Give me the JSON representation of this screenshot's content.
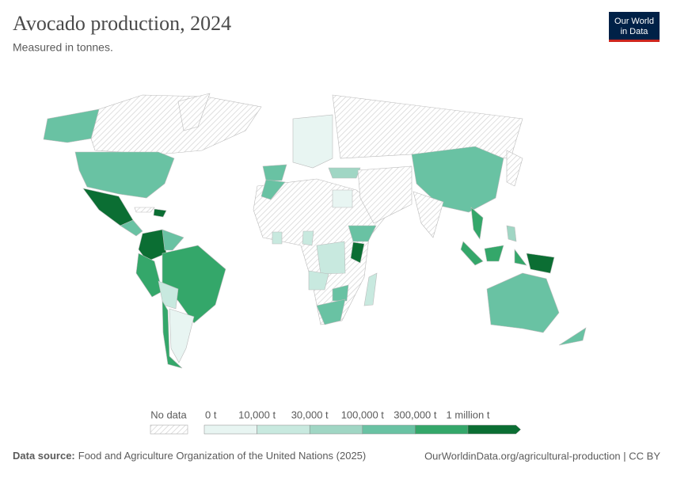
{
  "header": {
    "title": "Avocado production, 2024",
    "subtitle": "Measured in tonnes.",
    "logo": [
      "Our World",
      "in Data"
    ]
  },
  "legend": {
    "no_data": "No data",
    "bins": [
      "0 t",
      "10,000 t",
      "30,000 t",
      "100,000 t",
      "300,000 t",
      "1 million t"
    ],
    "colors": [
      "#e8f5f2",
      "#c8e9df",
      "#a0d6c4",
      "#69c2a3",
      "#34a76a",
      "#0b6e33"
    ]
  },
  "footer": {
    "source_label": "Data source:",
    "source": "Food and Agriculture Organization of the United Nations (2025)",
    "link": "OurWorldinData.org/agricultural-production | CC BY"
  }
}
